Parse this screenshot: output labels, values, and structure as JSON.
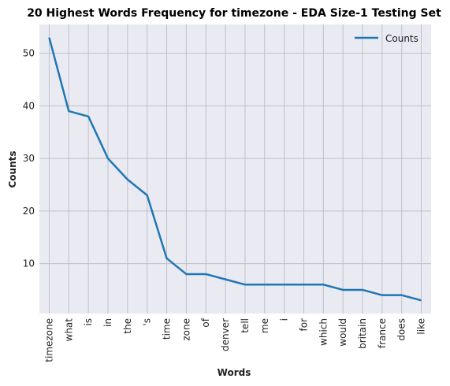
{
  "chart_data": {
    "type": "line",
    "title": "20 Highest Words Frequency for timezone - EDA Size-1 Testing Set",
    "xlabel": "Words",
    "ylabel": "Counts",
    "categories": [
      "timezone",
      "what",
      "is",
      "in",
      "the",
      "'s",
      "time",
      "zone",
      "of",
      "denver",
      "tell",
      "me",
      "i",
      "for",
      "which",
      "would",
      "britain",
      "france",
      "does",
      "like"
    ],
    "series": [
      {
        "name": "Counts",
        "values": [
          53,
          39,
          38,
          30,
          26,
          23,
          11,
          8,
          8,
          7,
          6,
          6,
          6,
          6,
          6,
          5,
          5,
          4,
          4,
          3
        ],
        "color": "#1f77b4"
      }
    ],
    "ylim": [
      0.5,
      55.5
    ],
    "yticks": [
      10,
      20,
      30,
      40,
      50
    ],
    "grid": true,
    "legend": "top-right"
  },
  "colors": {
    "plot_background": "#eaeaf2",
    "grid": "#c0c0c8"
  }
}
